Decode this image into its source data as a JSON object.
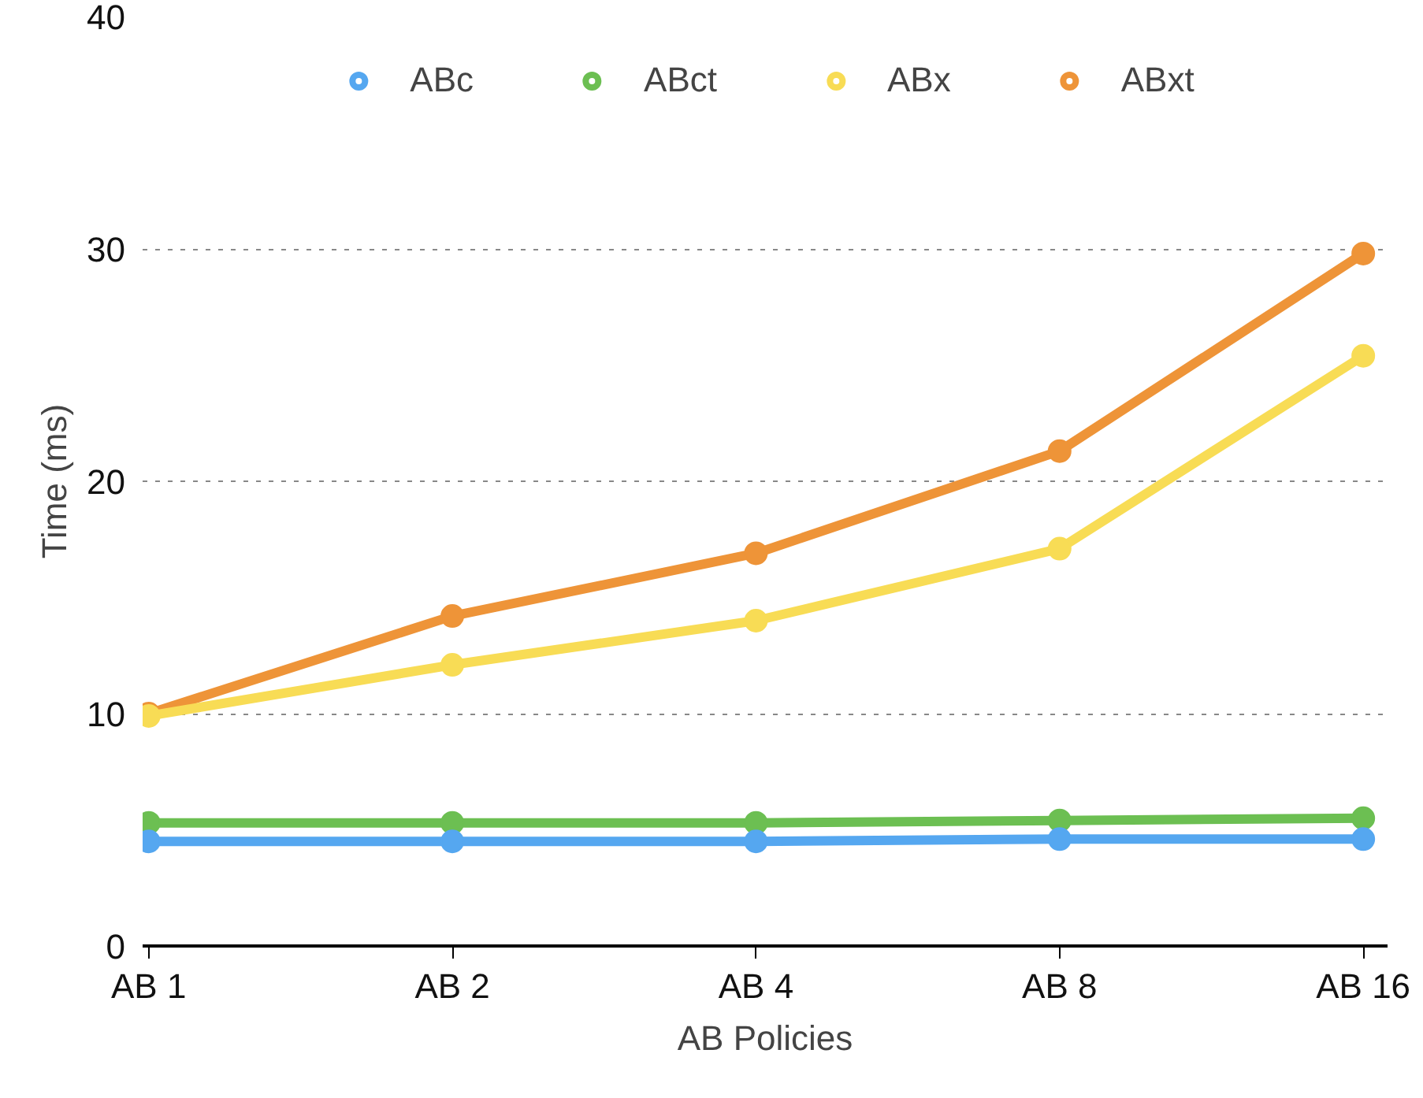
{
  "chart_data": {
    "type": "line",
    "xlabel": "AB Policies",
    "ylabel": "Time (ms)",
    "categories": [
      "AB 1",
      "AB 2",
      "AB 4",
      "AB 8",
      "AB 16"
    ],
    "ylim": [
      0,
      40
    ],
    "yticks": [
      0,
      10,
      20,
      30,
      40
    ],
    "grid": "y",
    "legend": "top",
    "marker": "circle",
    "line_style": "solid",
    "series": [
      {
        "name": "ABc",
        "color": "#55a7f0",
        "values": [
          4.5,
          4.5,
          4.5,
          4.6,
          4.6
        ]
      },
      {
        "name": "ABct",
        "color": "#6cbf52",
        "values": [
          5.3,
          5.3,
          5.3,
          5.4,
          5.5
        ]
      },
      {
        "name": "ABx",
        "color": "#f8dc55",
        "values": [
          9.9,
          12.1,
          14.0,
          17.1,
          25.4
        ]
      },
      {
        "name": "ABxt",
        "color": "#ee9438",
        "values": [
          10.0,
          14.2,
          16.9,
          21.3,
          29.8
        ]
      }
    ]
  }
}
